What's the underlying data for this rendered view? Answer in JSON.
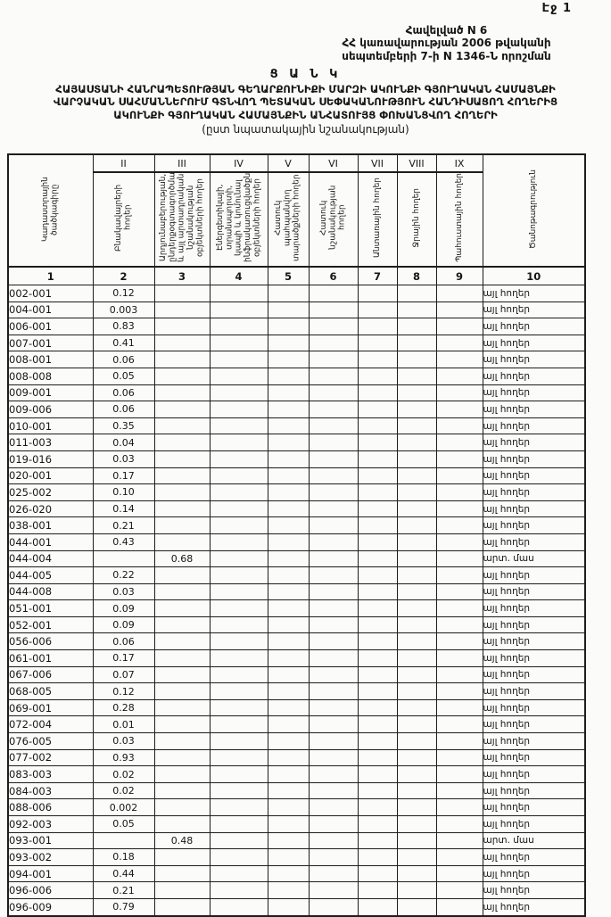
{
  "page": {
    "number_label": "Էջ 1"
  },
  "appendix": {
    "line1": "Հավելված N 6",
    "line2": "ՀՀ կառավարության 2006 թվականի",
    "line3": "սեպտեմբերի 7-ի  N 1346-Ն որոշման"
  },
  "title": {
    "heading": "Ց Ա Ն Կ",
    "line1": "ՀԱՅԱՍՏԱՆԻ ՀԱՆՐԱՊԵՏՈՒԹՅԱՆ ԳԵՂԱՐՔՈՒՆԻՔԻ ՄԱՐԶԻ ԱԿՈՒՆՔԻ ԳՅՈՒՂԱԿԱՆ ՀԱՄԱՅՆՔԻ",
    "line2": "ՎԱՐՉԱԿԱՆ ՍԱՀՄԱՆՆԵՐՈՒՄ  ԳՏՆՎՈՂ  ՊԵՏԱԿԱՆ ՍԵՓԱԿԱՆՈՒԹՅՈՒՆ  ՀԱՆԴԻՍԱՑՈՂ ՀՈՂԵՐԻՑ",
    "line3": "ԱԿՈՒՆՔԻ ԳՅՈՒՂԱԿԱՆ ՀԱՄԱՅՆՔԻՆ ԱՆՀԱՏՈՒՅՑ ՓՈԽԱՆՑՎՈՂ ՀՈՂԵՐԻ",
    "subtitle": "(ըստ նպատակային նշանակության)"
  },
  "table": {
    "columns": [
      {
        "numeral": "",
        "label": "Կադաստրային ծածկագիրը",
        "index": "1"
      },
      {
        "numeral": "II",
        "label": "Բնակավայրերի հողեր",
        "index": "2"
      },
      {
        "numeral": "III",
        "label": "Արդյունաբերության, ընդերքօգտագործման և այլ արտադրական նշանակության օբյեկտների հողեր",
        "index": "3"
      },
      {
        "numeral": "IV",
        "label": "Էներգետիկայի, տրանսպորտի, կապի և կոմունալ ինֆրակառուցվածքների օբյեկտների հողեր",
        "index": "4"
      },
      {
        "numeral": "V",
        "label": "Հատուկ պահպանվող տարածքների հողեր",
        "index": "5"
      },
      {
        "numeral": "VI",
        "label": "Հատուկ նշանակության հողեր",
        "index": "6"
      },
      {
        "numeral": "VII",
        "label": "Անտառային հողեր",
        "index": "7"
      },
      {
        "numeral": "VIII",
        "label": "Ջրային հողեր",
        "index": "8"
      },
      {
        "numeral": "IX",
        "label": "Պահուստային հողեր",
        "index": "9"
      },
      {
        "numeral": "",
        "label": "Ծանոթագրություն",
        "index": "10"
      }
    ],
    "rows": [
      {
        "code": "002-001",
        "residential": "0.12",
        "industrial": "",
        "note": "այլ հողեր"
      },
      {
        "code": "004-001",
        "residential": "0.003",
        "industrial": "",
        "note": "այլ հողեր"
      },
      {
        "code": "006-001",
        "residential": "0.83",
        "industrial": "",
        "note": "այլ հողեր"
      },
      {
        "code": "007-001",
        "residential": "0.41",
        "industrial": "",
        "note": "այլ հողեր"
      },
      {
        "code": "008-001",
        "residential": "0.06",
        "industrial": "",
        "note": "այլ հողեր"
      },
      {
        "code": "008-008",
        "residential": "0.05",
        "industrial": "",
        "note": "այլ հողեր"
      },
      {
        "code": "009-001",
        "residential": "0.06",
        "industrial": "",
        "note": "այլ հողեր"
      },
      {
        "code": "009-006",
        "residential": "0.06",
        "industrial": "",
        "note": "այլ հողեր"
      },
      {
        "code": "010-001",
        "residential": "0.35",
        "industrial": "",
        "note": "այլ հողեր"
      },
      {
        "code": "011-003",
        "residential": "0.04",
        "industrial": "",
        "note": "այլ հողեր"
      },
      {
        "code": "019-016",
        "residential": "0.03",
        "industrial": "",
        "note": "այլ հողեր"
      },
      {
        "code": "020-001",
        "residential": "0.17",
        "industrial": "",
        "note": "այլ հողեր"
      },
      {
        "code": "025-002",
        "residential": "0.10",
        "industrial": "",
        "note": "այլ հողեր"
      },
      {
        "code": "026-020",
        "residential": "0.14",
        "industrial": "",
        "note": "այլ հողեր"
      },
      {
        "code": "038-001",
        "residential": "0.21",
        "industrial": "",
        "note": "այլ հողեր"
      },
      {
        "code": "044-001",
        "residential": "0.43",
        "industrial": "",
        "note": "այլ հողեր"
      },
      {
        "code": "044-004",
        "residential": "",
        "industrial": "0.68",
        "note": "արտ. մաս"
      },
      {
        "code": "044-005",
        "residential": "0.22",
        "industrial": "",
        "note": "այլ հողեր"
      },
      {
        "code": "044-008",
        "residential": "0.03",
        "industrial": "",
        "note": "այլ հողեր"
      },
      {
        "code": "051-001",
        "residential": "0.09",
        "industrial": "",
        "note": "այլ հողեր"
      },
      {
        "code": "052-001",
        "residential": "0.09",
        "industrial": "",
        "note": "այլ հողեր"
      },
      {
        "code": "056-006",
        "residential": "0.06",
        "industrial": "",
        "note": "այլ հողեր"
      },
      {
        "code": "061-001",
        "residential": "0.17",
        "industrial": "",
        "note": "այլ հողեր"
      },
      {
        "code": "067-006",
        "residential": "0.07",
        "industrial": "",
        "note": "այլ հողեր"
      },
      {
        "code": "068-005",
        "residential": "0.12",
        "industrial": "",
        "note": "այլ հողեր"
      },
      {
        "code": "069-001",
        "residential": "0.28",
        "industrial": "",
        "note": "այլ հողեր"
      },
      {
        "code": "072-004",
        "residential": "0.01",
        "industrial": "",
        "note": "այլ հողեր"
      },
      {
        "code": "076-005",
        "residential": "0.03",
        "industrial": "",
        "note": "այլ հողեր"
      },
      {
        "code": "077-002",
        "residential": "0.93",
        "industrial": "",
        "note": "այլ հողեր"
      },
      {
        "code": "083-003",
        "residential": "0.02",
        "industrial": "",
        "note": "այլ հողեր"
      },
      {
        "code": "084-003",
        "residential": "0.02",
        "industrial": "",
        "note": "այլ հողեր"
      },
      {
        "code": "088-006",
        "residential": "0.002",
        "industrial": "",
        "note": "այլ հողեր"
      },
      {
        "code": "092-003",
        "residential": "0.05",
        "industrial": "",
        "note": "այլ հողեր"
      },
      {
        "code": "093-001",
        "residential": "",
        "industrial": "0.48",
        "note": "արտ. մաս"
      },
      {
        "code": "093-002",
        "residential": "0.18",
        "industrial": "",
        "note": "այլ հողեր"
      },
      {
        "code": "094-001",
        "residential": "0.44",
        "industrial": "",
        "note": "այլ հողեր"
      },
      {
        "code": "096-006",
        "residential": "0.21",
        "industrial": "",
        "note": "այլ հողեր"
      },
      {
        "code": "096-009",
        "residential": "0.79",
        "industrial": "",
        "note": "այլ հողեր"
      }
    ]
  }
}
